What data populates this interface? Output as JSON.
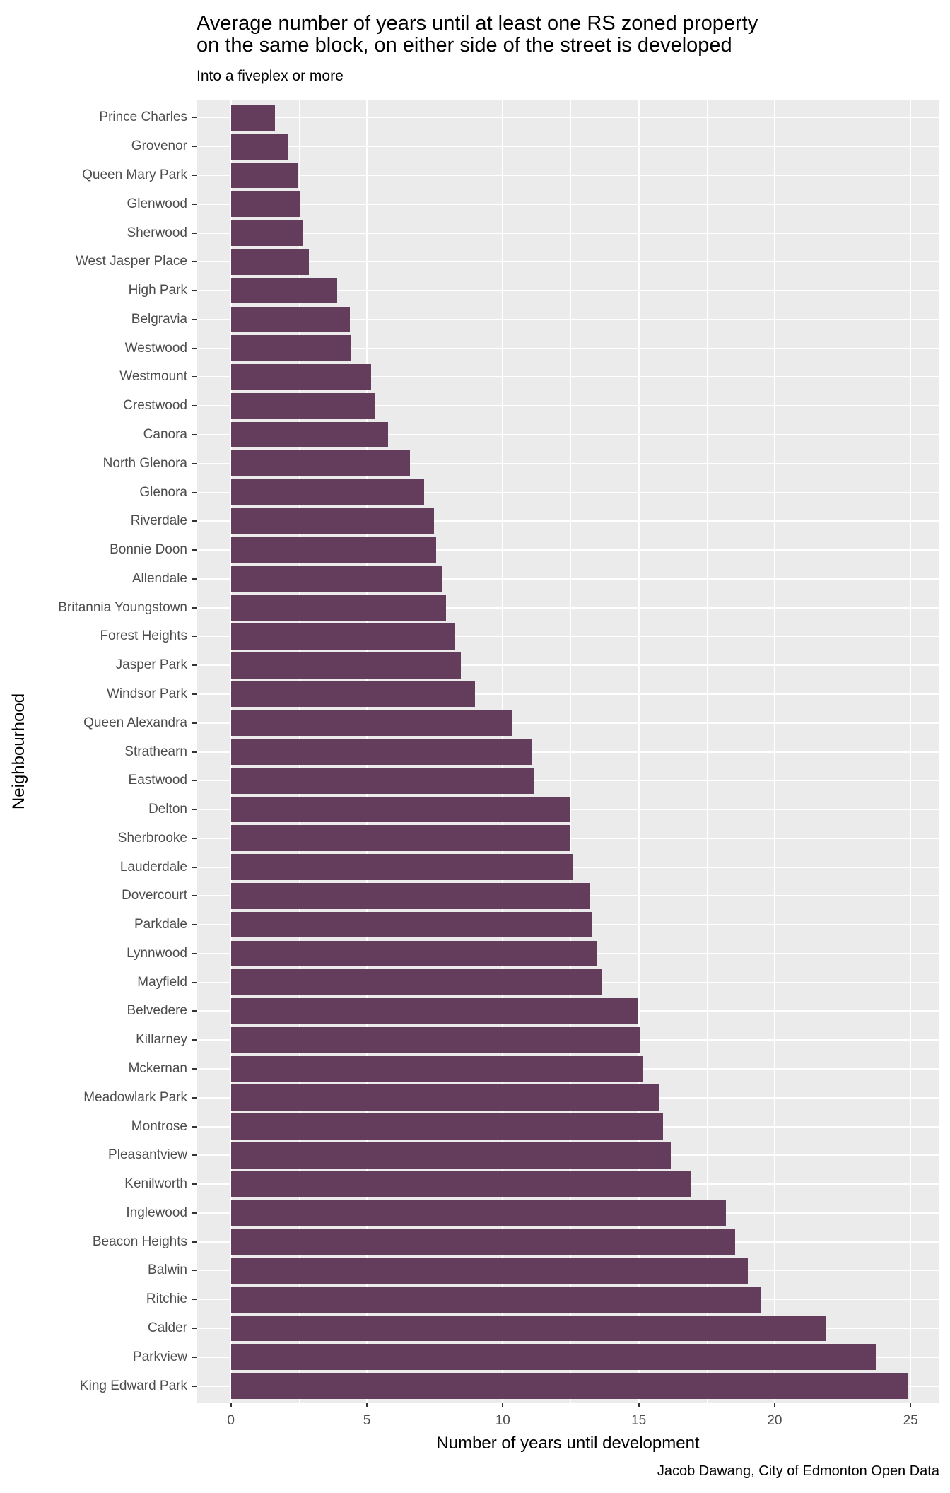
{
  "chart_data": {
    "type": "bar",
    "orientation": "horizontal",
    "title": "Average number of years until at least one RS zoned property\non the same block, on either side of the street is developed",
    "subtitle": "Into a fiveplex or more",
    "xlabel": "Number of years until development",
    "ylabel": "Neighbourhood",
    "caption": "Jacob Dawang, City of Edmonton Open Data",
    "xlim": [
      0,
      25
    ],
    "x_ticks": [
      0,
      5,
      10,
      15,
      20,
      25
    ],
    "grid": "vertical major+minor white gridlines, horizontal major white gridlines, no legend",
    "legend": "none",
    "bar_color": "#643C5C",
    "panel_color": "#EBEBEB",
    "gridline_color": "#FFFFFF",
    "axis_text_color": "#4D4D4D",
    "tick_color": "#333333",
    "categories": [
      "Prince Charles",
      "Grovenor",
      "Queen Mary Park",
      "Glenwood",
      "Sherwood",
      "West Jasper Place",
      "High Park",
      "Belgravia",
      "Westwood",
      "Westmount",
      "Crestwood",
      "Canora",
      "North Glenora",
      "Glenora",
      "Riverdale",
      "Bonnie Doon",
      "Allendale",
      "Britannia Youngstown",
      "Forest Heights",
      "Jasper Park",
      "Windsor Park",
      "Queen Alexandra",
      "Strathearn",
      "Eastwood",
      "Delton",
      "Sherbrooke",
      "Lauderdale",
      "Dovercourt",
      "Parkdale",
      "Lynnwood",
      "Mayfield",
      "Belvedere",
      "Killarney",
      "Mckernan",
      "Meadowlark Park",
      "Montrose",
      "Pleasantview",
      "Kenilworth",
      "Inglewood",
      "Beacon Heights",
      "Balwin",
      "Ritchie",
      "Calder",
      "Parkview",
      "King Edward Park"
    ],
    "values": [
      1.63,
      2.08,
      2.47,
      2.54,
      2.67,
      2.87,
      3.9,
      4.37,
      4.44,
      5.15,
      5.28,
      5.78,
      6.58,
      7.1,
      7.47,
      7.56,
      7.77,
      7.91,
      8.25,
      8.46,
      8.97,
      10.32,
      11.06,
      11.14,
      12.45,
      12.48,
      12.59,
      13.18,
      13.26,
      13.47,
      13.63,
      14.95,
      15.06,
      15.17,
      15.77,
      15.89,
      16.17,
      16.91,
      18.2,
      18.55,
      19.02,
      19.51,
      21.87,
      23.75,
      24.9
    ]
  }
}
